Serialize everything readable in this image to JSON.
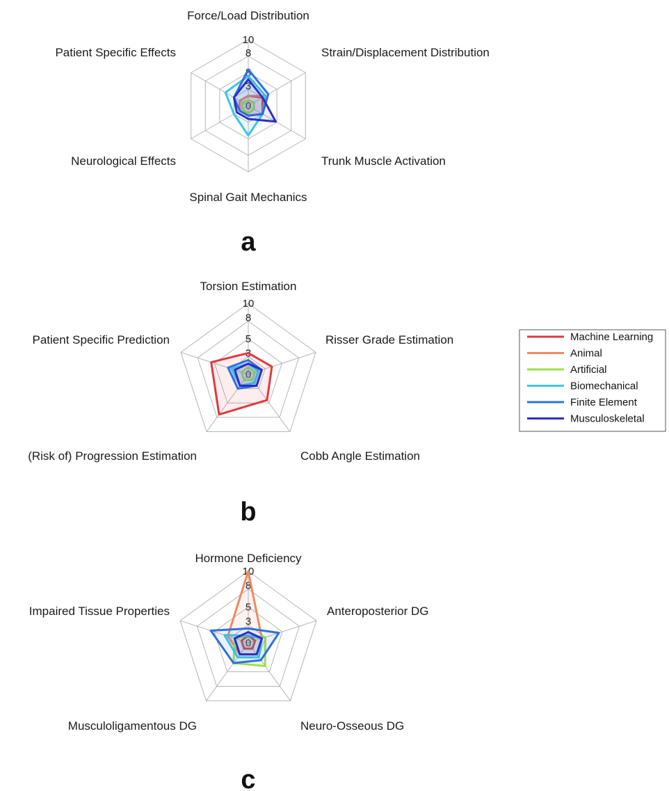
{
  "legend": [
    {
      "name": "Machine Learning",
      "color": "#e0393e"
    },
    {
      "name": "Animal",
      "color": "#ee8a60"
    },
    {
      "name": "Artificial",
      "color": "#9ee04e"
    },
    {
      "name": "Biomechanical",
      "color": "#3cc6e6"
    },
    {
      "name": "Finite Element",
      "color": "#2f6fe0"
    },
    {
      "name": "Musculoskeletal",
      "color": "#2b2fc4"
    }
  ],
  "chart_data": [
    {
      "type": "radar",
      "panel_label": "a",
      "ticks": [
        "10",
        "8",
        "5",
        "3",
        "0"
      ],
      "rlim": [
        0,
        10
      ],
      "axes": [
        "Force/Load Distribution",
        "Strain/Displacement Distribution",
        "Trunk Muscle Activation",
        "Spinal Gait Mechanics",
        "Neurological Effects",
        "Patient Specific Effects"
      ],
      "series": [
        {
          "name": "Machine Learning",
          "values": [
            1.5,
            2.5,
            2.5,
            1.5,
            1.5,
            1.5
          ]
        },
        {
          "name": "Animal",
          "values": [
            1.5,
            3.0,
            2.5,
            1.5,
            1.5,
            1.5
          ]
        },
        {
          "name": "Artificial",
          "values": [
            0.8,
            1.0,
            1.0,
            1.2,
            1.0,
            1.0
          ]
        },
        {
          "name": "Biomechanical",
          "values": [
            4.5,
            3.0,
            2.5,
            4.5,
            2.5,
            4.0
          ]
        },
        {
          "name": "Finite Element",
          "values": [
            5.5,
            3.5,
            2.5,
            1.5,
            1.5,
            2.5
          ]
        },
        {
          "name": "Musculoskeletal",
          "values": [
            4.0,
            2.5,
            4.8,
            2.0,
            2.0,
            2.5
          ]
        }
      ]
    },
    {
      "type": "radar",
      "panel_label": "b",
      "ticks": [
        "10",
        "8",
        "5",
        "3",
        "0"
      ],
      "rlim": [
        0,
        10
      ],
      "axes": [
        "Torsion Estimation",
        "Risser Grade Estimation",
        "Cobb Angle Estimation",
        "(Risk of) Progression Estimation",
        "Patient Specific Prediction"
      ],
      "series": [
        {
          "name": "Machine Learning",
          "values": [
            3.0,
            3.5,
            4.5,
            7.0,
            5.5
          ]
        },
        {
          "name": "Animal",
          "values": [
            1.5,
            2.0,
            2.0,
            2.0,
            2.0
          ]
        },
        {
          "name": "Artificial",
          "values": [
            1.0,
            1.0,
            1.0,
            1.0,
            1.0
          ]
        },
        {
          "name": "Biomechanical",
          "values": [
            1.5,
            1.5,
            1.5,
            2.0,
            2.5
          ]
        },
        {
          "name": "Finite Element",
          "values": [
            2.0,
            2.0,
            2.0,
            2.5,
            3.0
          ]
        },
        {
          "name": "Musculoskeletal",
          "values": [
            1.5,
            2.0,
            2.0,
            2.0,
            2.0
          ]
        }
      ]
    },
    {
      "type": "radar",
      "panel_label": "c",
      "ticks": [
        "10",
        "8",
        "5",
        "3",
        "0"
      ],
      "rlim": [
        0,
        10
      ],
      "axes": [
        "Hormone Deficiency",
        "Anteroposterior DG",
        "Neuro-Osseous DG",
        "Musculoligamentous DG",
        "Impaired Tissue Properties"
      ],
      "series": [
        {
          "name": "Machine Learning",
          "values": [
            1.0,
            1.0,
            1.0,
            1.0,
            1.0
          ]
        },
        {
          "name": "Animal",
          "values": [
            10.0,
            2.0,
            2.0,
            2.0,
            3.0
          ]
        },
        {
          "name": "Artificial",
          "values": [
            1.0,
            2.5,
            4.0,
            3.5,
            2.0
          ]
        },
        {
          "name": "Biomechanical",
          "values": [
            1.0,
            2.0,
            2.5,
            2.5,
            3.5
          ]
        },
        {
          "name": "Finite Element",
          "values": [
            2.0,
            4.5,
            3.0,
            3.5,
            5.5
          ]
        },
        {
          "name": "Musculoskeletal",
          "values": [
            1.5,
            2.0,
            2.0,
            2.0,
            2.0
          ]
        }
      ]
    }
  ]
}
